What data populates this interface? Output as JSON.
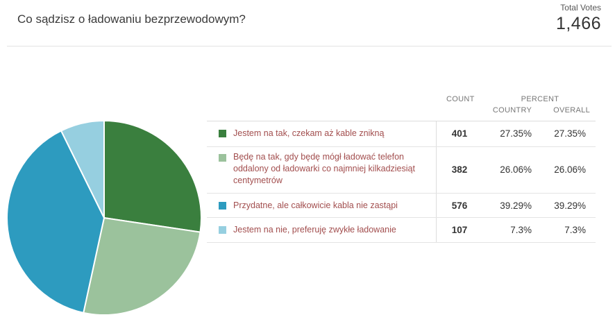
{
  "poll": {
    "question": "Co sądzisz o ładowaniu bezprzewodowym?",
    "total_label": "Total Votes",
    "total_value": "1,466"
  },
  "table": {
    "count_header": "COUNT",
    "percent_header": "PERCENT",
    "country_header": "COUNTRY",
    "overall_header": "OVERALL",
    "rows": [
      {
        "label": "Jestem na tak, czekam aż kable znikną",
        "count": "401",
        "country": "27.35%",
        "overall": "27.35%",
        "color": "#3a7f3e"
      },
      {
        "label": "Będę na tak, gdy będę mógł ładować telefon oddalony od ładowarki co najmniej kilkadziesiąt centymetrów",
        "count": "382",
        "country": "26.06%",
        "overall": "26.06%",
        "color": "#9bc29c"
      },
      {
        "label": "Przydatne, ale całkowicie kabla nie zastąpi",
        "count": "576",
        "country": "39.29%",
        "overall": "39.29%",
        "color": "#2d9bbf"
      },
      {
        "label": "Jestem na nie, preferuję zwykłe ładowanie",
        "count": "107",
        "country": "7.3%",
        "overall": "7.3%",
        "color": "#96cfe0"
      }
    ]
  },
  "chart_data": {
    "type": "pie",
    "categories": [
      "Jestem na tak, czekam aż kable znikną",
      "Będę na tak, gdy będę mógł ładować telefon oddalony od ładowarki co najmniej kilkadziesiąt centymetrów",
      "Przydatne, ale całkowicie kabla nie zastąpi",
      "Jestem na nie, preferuję zwykłe ładowanie"
    ],
    "values": [
      401,
      382,
      576,
      107
    ],
    "colors": [
      "#3a7f3e",
      "#9bc29c",
      "#2d9bbf",
      "#96cfe0"
    ],
    "title": "Co sądzisz o ładowaniu bezprzewodowym?"
  }
}
